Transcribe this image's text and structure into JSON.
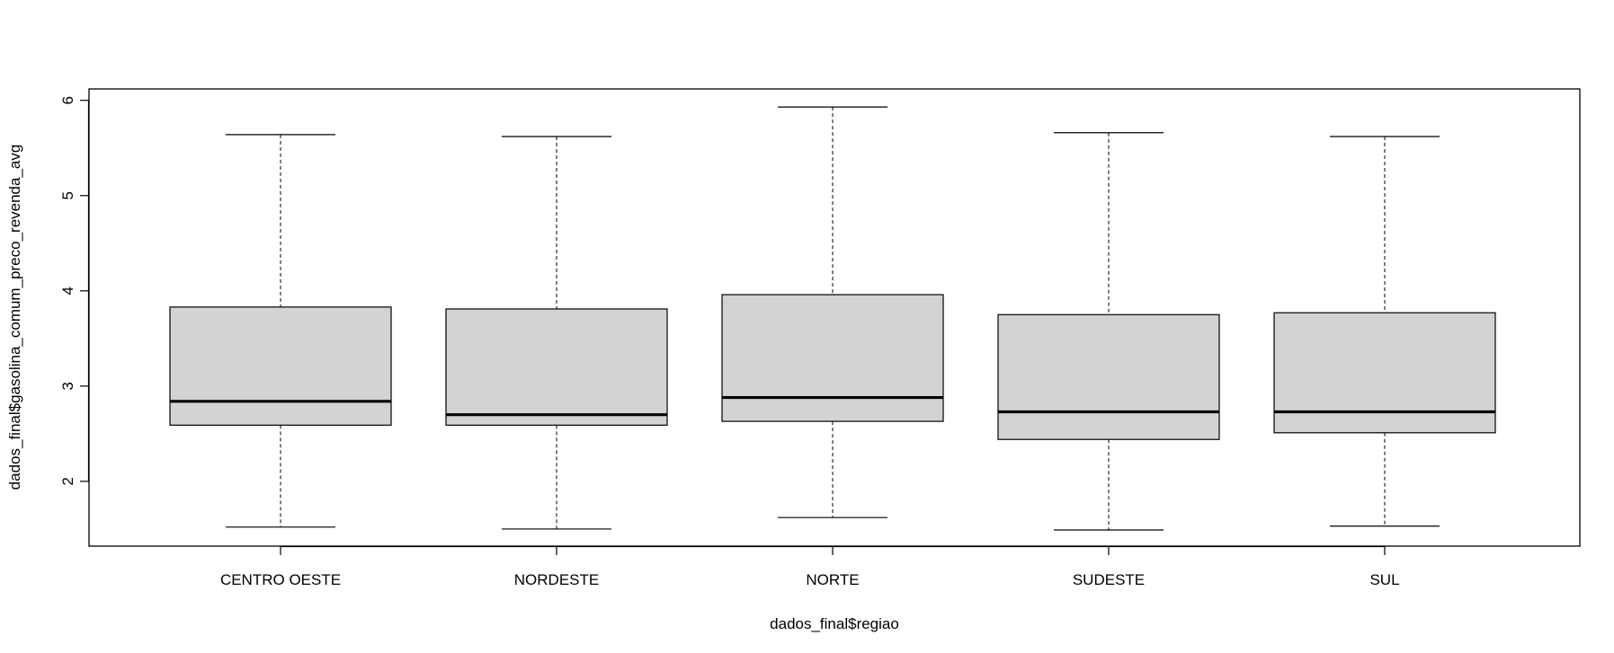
{
  "chart_data": {
    "type": "boxplot",
    "title": "",
    "xlabel": "dados_final$regiao",
    "ylabel": "dados_final$gasolina_comum_preco_revenda_avg",
    "ylim": [
      1.32,
      6.12
    ],
    "yticks": [
      2,
      3,
      4,
      5,
      6
    ],
    "grid": false,
    "box_fill": "#d3d3d3",
    "categories": [
      "CENTRO OESTE",
      "NORDESTE",
      "NORTE",
      "SUDESTE",
      "SUL"
    ],
    "series": [
      {
        "category": "CENTRO OESTE",
        "min": 1.52,
        "q1": 2.59,
        "median": 2.84,
        "q3": 3.83,
        "max": 5.64
      },
      {
        "category": "NORDESTE",
        "min": 1.5,
        "q1": 2.59,
        "median": 2.7,
        "q3": 3.81,
        "max": 5.62
      },
      {
        "category": "NORTE",
        "min": 1.62,
        "q1": 2.63,
        "median": 2.88,
        "q3": 3.96,
        "max": 5.93
      },
      {
        "category": "SUDESTE",
        "min": 1.49,
        "q1": 2.44,
        "median": 2.73,
        "q3": 3.75,
        "max": 5.66
      },
      {
        "category": "SUL",
        "min": 1.53,
        "q1": 2.51,
        "median": 2.73,
        "q3": 3.77,
        "max": 5.62
      }
    ]
  }
}
